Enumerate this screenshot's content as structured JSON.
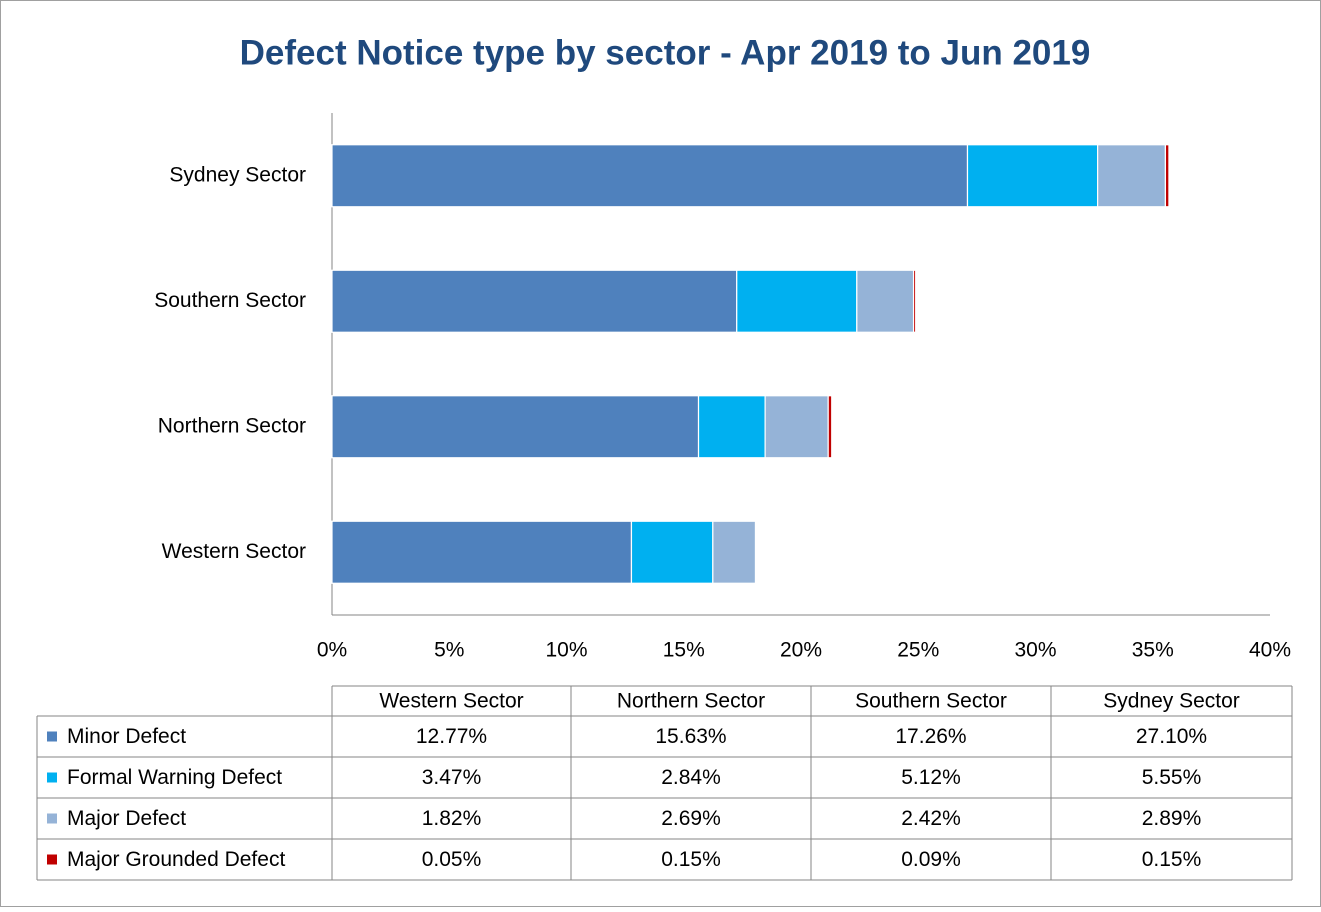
{
  "chart_data": {
    "type": "bar",
    "orientation": "horizontal",
    "stacked": true,
    "title": "Defect Notice type by sector - Apr 2019 to Jun 2019",
    "categories": [
      "Western Sector",
      "Northern Sector",
      "Southern Sector",
      "Sydney Sector"
    ],
    "series": [
      {
        "name": "Minor Defect",
        "color": "#4f81bd",
        "values": [
          12.77,
          15.63,
          17.26,
          27.1
        ],
        "value_labels": [
          "12.77%",
          "15.63%",
          "17.26%",
          "27.10%"
        ]
      },
      {
        "name": "Formal Warning Defect",
        "color": "#00b0f0",
        "values": [
          3.47,
          2.84,
          5.12,
          5.55
        ],
        "value_labels": [
          "3.47%",
          "2.84%",
          "5.12%",
          "5.55%"
        ]
      },
      {
        "name": "Major Defect",
        "color": "#95b3d7",
        "values": [
          1.82,
          2.69,
          2.42,
          2.89
        ],
        "value_labels": [
          "1.82%",
          "2.69%",
          "2.42%",
          "2.89%"
        ]
      },
      {
        "name": "Major Grounded Defect",
        "color": "#c00000",
        "values": [
          0.05,
          0.15,
          0.09,
          0.15
        ],
        "value_labels": [
          "0.05%",
          "0.15%",
          "0.09%",
          "0.15%"
        ]
      }
    ],
    "xlim": [
      0,
      40
    ],
    "xticks": [
      {
        "value": 0,
        "label": "0%"
      },
      {
        "value": 5,
        "label": "5%"
      },
      {
        "value": 10,
        "label": "10%"
      },
      {
        "value": 15,
        "label": "15%"
      },
      {
        "value": 20,
        "label": "20%"
      },
      {
        "value": 25,
        "label": "25%"
      },
      {
        "value": 30,
        "label": "30%"
      },
      {
        "value": 35,
        "label": "35%"
      },
      {
        "value": 40,
        "label": "40%"
      }
    ],
    "grid": false,
    "data_table": true
  }
}
